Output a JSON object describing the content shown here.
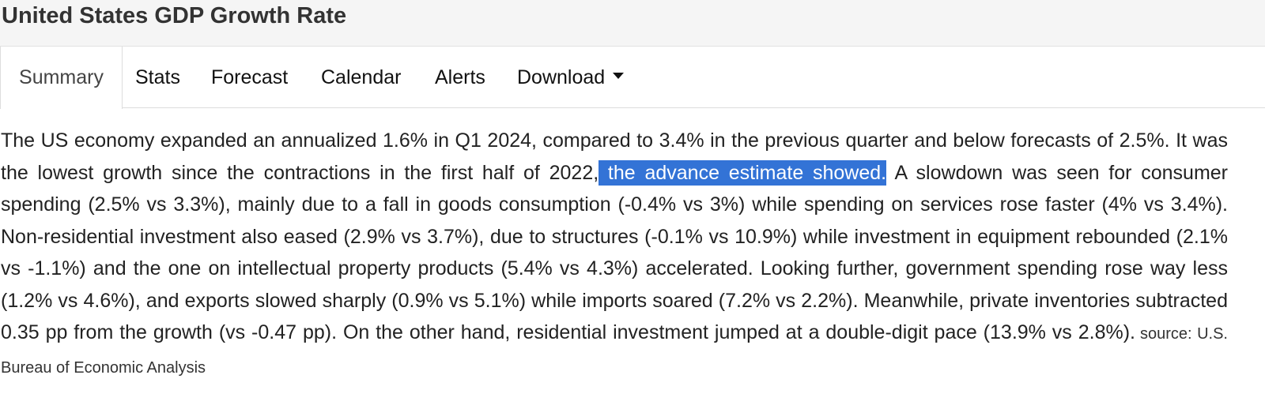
{
  "header": {
    "title": "United States GDP Growth Rate"
  },
  "tabs": {
    "summary": "Summary",
    "stats": "Stats",
    "forecast": "Forecast",
    "calendar": "Calendar",
    "alerts": "Alerts",
    "download": "Download",
    "download_icon": "caret-down-icon"
  },
  "content": {
    "text_before": "The US economy expanded an annualized 1.6% in Q1 2024, compared to 3.4% in the previous quarter and below forecasts of 2.5%. It was the lowest growth since the contractions in the first half of 2022,",
    "highlighted": " the advance estimate showed.",
    "text_after": " A slowdown was seen for consumer spending (2.5% vs 3.3%), mainly due to a fall in goods consumption (-0.4% vs 3%) while spending on services rose faster (4% vs 3.4%). Non-residential investment also eased (2.9% vs 3.7%), due to structures (-0.1% vs 10.9%) while investment in equipment rebounded (2.1% vs -1.1%) and the one on intellectual property products (5.4% vs 4.3%) accelerated. Looking further, government spending rose way less (1.2% vs 4.6%), and exports slowed sharply (0.9% vs 5.1%) while imports soared (7.2% vs 2.2%). Meanwhile, private inventories subtracted 0.35 pp from the growth (vs -0.47 pp). On the other hand, residential investment jumped at a double-digit pace (13.9% vs 2.8%).",
    "source": "source: U.S. Bureau of Economic Analysis"
  },
  "colors": {
    "highlight_bg": "#3373d6",
    "header_bg": "#f5f5f5"
  }
}
